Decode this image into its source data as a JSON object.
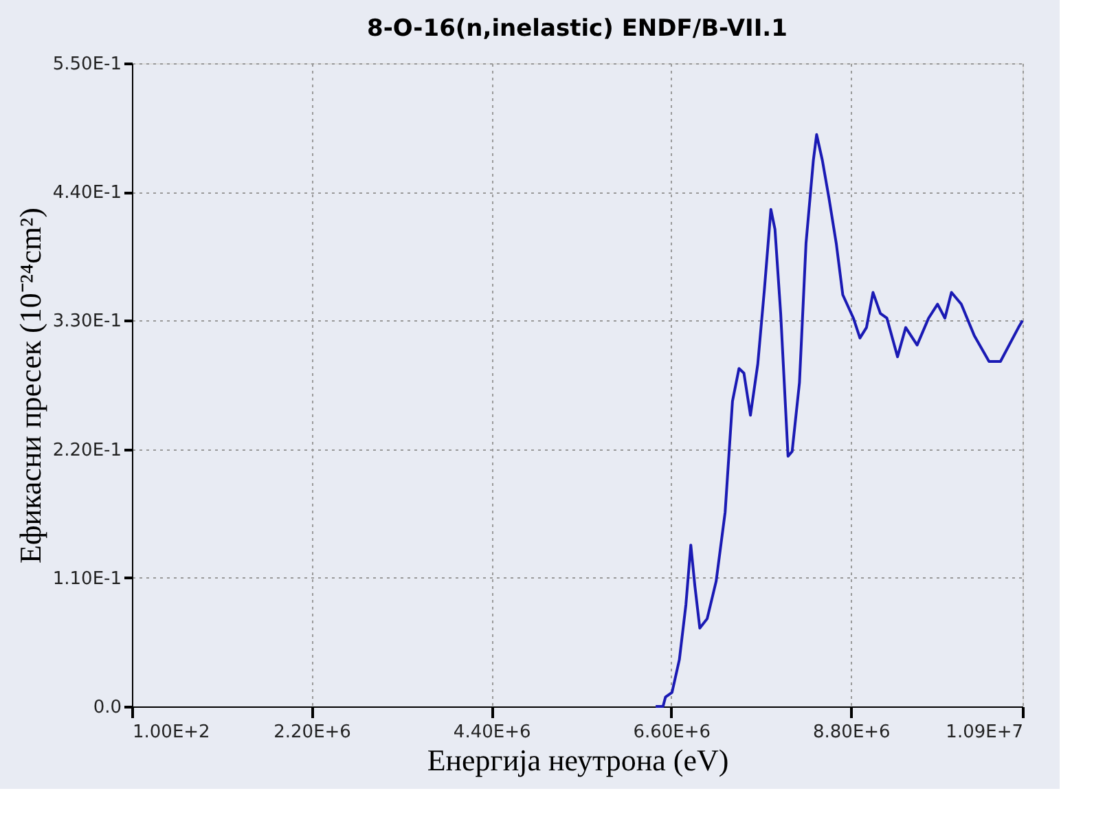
{
  "chart_data": {
    "type": "line",
    "title": "8-O-16(n,inelastic) ENDF/B-VII.1",
    "xlabel": "Енергија неутрона (eV)",
    "ylabel": "Ефикасни пресек (10⁻²⁴cm²)",
    "xlim": [
      100,
      10900000
    ],
    "xticks": [
      {
        "value": 100,
        "label": "1.00E+2"
      },
      {
        "value": 2200000,
        "label": "2.20E+6"
      },
      {
        "value": 4400000,
        "label": "4.40E+6"
      },
      {
        "value": 6600000,
        "label": "6.60E+6"
      },
      {
        "value": 8800000,
        "label": "8.80E+6"
      },
      {
        "value": 10900000,
        "label": "1.09E+7"
      }
    ],
    "ylim": [
      0,
      0.55
    ],
    "yticks": [
      {
        "value": 0,
        "label": "0.0"
      },
      {
        "value": 0.11,
        "label": "1.10E-1"
      },
      {
        "value": 0.22,
        "label": "2.20E-1"
      },
      {
        "value": 0.33,
        "label": "3.30E-1"
      },
      {
        "value": 0.44,
        "label": "4.40E-1"
      },
      {
        "value": 0.55,
        "label": "5.50E-1"
      }
    ],
    "grid": true,
    "marker": "none",
    "line_style": "solid",
    "series": [
      {
        "color": "#1a1ab4",
        "x": [
          6410000,
          6500000,
          6530000,
          6610000,
          6700000,
          6780000,
          6840000,
          6890000,
          6950000,
          7040000,
          7150000,
          7260000,
          7350000,
          7430000,
          7490000,
          7570000,
          7660000,
          7740000,
          7820000,
          7870000,
          7940000,
          8030000,
          8080000,
          8170000,
          8250000,
          8340000,
          8380000,
          8450000,
          8530000,
          8620000,
          8700000,
          8830000,
          8910000,
          8990000,
          9070000,
          9160000,
          9240000,
          9370000,
          9470000,
          9610000,
          9750000,
          9860000,
          9950000,
          10030000,
          10150000,
          10310000,
          10490000,
          10630000,
          10850000,
          10900000
        ],
        "values": [
          0,
          0,
          0.008,
          0.012,
          0.04,
          0.087,
          0.138,
          0.103,
          0.067,
          0.075,
          0.107,
          0.166,
          0.261,
          0.289,
          0.285,
          0.249,
          0.293,
          0.356,
          0.425,
          0.408,
          0.336,
          0.214,
          0.218,
          0.277,
          0.396,
          0.467,
          0.489,
          0.467,
          0.435,
          0.396,
          0.352,
          0.332,
          0.315,
          0.324,
          0.354,
          0.336,
          0.332,
          0.299,
          0.324,
          0.309,
          0.332,
          0.344,
          0.332,
          0.354,
          0.344,
          0.317,
          0.295,
          0.295,
          0.324,
          0.33
        ]
      }
    ]
  }
}
